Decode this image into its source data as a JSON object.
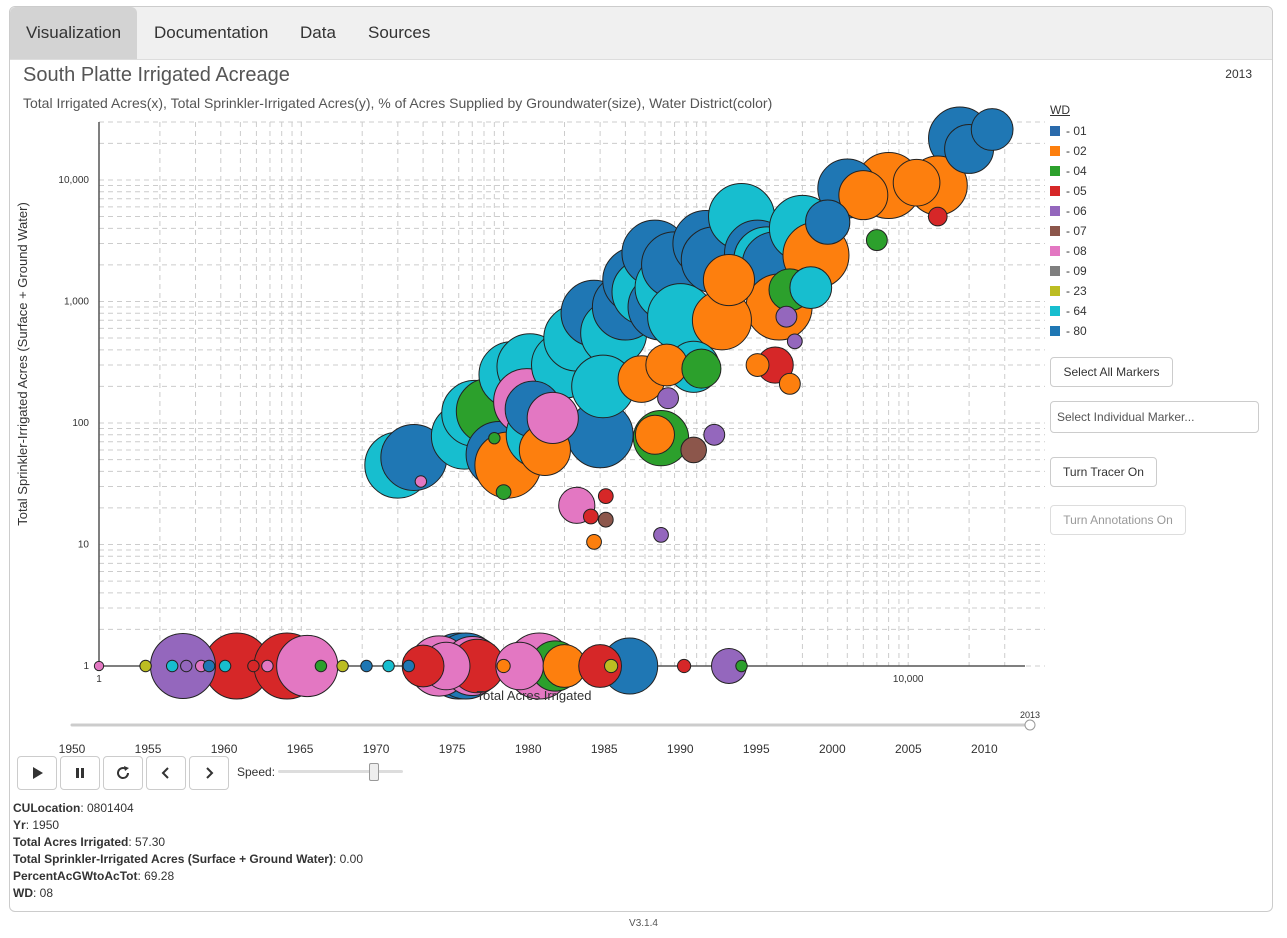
{
  "tabs": [
    "Visualization",
    "Documentation",
    "Data",
    "Sources"
  ],
  "title": "South Platte Irrigated Acreage",
  "subtitle": "Total Irrigated Acres(x), Total Sprinkler-Irrigated Acres(y), % of Acres Supplied by Groundwater(size), Water District(color)",
  "current_year": "2013",
  "legend": {
    "header": "WD",
    "items": [
      {
        "label": "- 01",
        "color": "#2a6aab"
      },
      {
        "label": "- 02",
        "color": "#fd7f0e"
      },
      {
        "label": "- 04",
        "color": "#2ca02c"
      },
      {
        "label": "- 05",
        "color": "#d62728"
      },
      {
        "label": "- 06",
        "color": "#9467bd"
      },
      {
        "label": "- 07",
        "color": "#8c564b"
      },
      {
        "label": "- 08",
        "color": "#e377c2"
      },
      {
        "label": "- 09",
        "color": "#7f7f7f"
      },
      {
        "label": "- 23",
        "color": "#bcbd22"
      },
      {
        "label": "- 64",
        "color": "#17becf"
      },
      {
        "label": "- 80",
        "color": "#1f77b4"
      }
    ]
  },
  "buttons": {
    "select_all": "Select All Markers",
    "select_individual_placeholder": "Select Individual Marker...",
    "tracer": "Turn Tracer On",
    "annotations": "Turn Annotations On"
  },
  "controls": {
    "speed_label": "Speed:",
    "play_icon": "play-icon",
    "pause_icon": "pause-icon",
    "reset_icon": "refresh-icon",
    "prev_icon": "chevron-left-icon",
    "next_icon": "chevron-right-icon"
  },
  "timeline": {
    "ticks": [
      "1950",
      "1955",
      "1960",
      "1965",
      "1970",
      "1975",
      "1980",
      "1985",
      "1990",
      "1995",
      "2000",
      "2005",
      "2010"
    ],
    "handle_label": "2013",
    "range": [
      1950,
      2013
    ],
    "value": 2013
  },
  "info": [
    {
      "key": "CULocation",
      "value": "0801404"
    },
    {
      "key": "Yr",
      "value": "1950"
    },
    {
      "key": "Total Acres Irrigated",
      "value": "57.30"
    },
    {
      "key": "Total Sprinkler-Irrigated Acres (Surface + Ground Water)",
      "value": "0.00"
    },
    {
      "key": "PercentAcGWtoAcTot",
      "value": "69.28"
    },
    {
      "key": "WD",
      "value": "08"
    }
  ],
  "version": "V3.1.4",
  "chart_data": {
    "type": "scatter",
    "xlabel": "Total Acres Irrigated",
    "ylabel": "Total Sprinkler-Irrigated Acres (Surface + Ground Water)",
    "xscale": "log",
    "yscale": "log",
    "xlim": [
      1,
      40000
    ],
    "ylim": [
      1,
      30000
    ],
    "y_ticks": [
      "1",
      "10",
      "100",
      "1,000",
      "10,000"
    ],
    "x_ticks": [
      "1",
      "10,000"
    ],
    "grid": true,
    "legend_position": "right",
    "size_encoding": "% of Acres Supplied by Groundwater",
    "points": [
      {
        "x": 1.0,
        "y": 1,
        "pct": 2,
        "wd": "08"
      },
      {
        "x": 1.7,
        "y": 1,
        "pct": 3,
        "wd": "23"
      },
      {
        "x": 2.3,
        "y": 1,
        "pct": 3,
        "wd": "64"
      },
      {
        "x": 2.6,
        "y": 1,
        "pct": 97,
        "wd": "06"
      },
      {
        "x": 2.7,
        "y": 1,
        "pct": 3,
        "wd": "06"
      },
      {
        "x": 3.2,
        "y": 1,
        "pct": 3,
        "wd": "08"
      },
      {
        "x": 3.5,
        "y": 1,
        "pct": 3,
        "wd": "80"
      },
      {
        "x": 4.2,
        "y": 1,
        "pct": 3,
        "wd": "64"
      },
      {
        "x": 4.8,
        "y": 1,
        "pct": 100,
        "wd": "05"
      },
      {
        "x": 5.8,
        "y": 1,
        "pct": 3,
        "wd": "05"
      },
      {
        "x": 6.8,
        "y": 1,
        "pct": 3,
        "wd": "08"
      },
      {
        "x": 8.5,
        "y": 1,
        "pct": 100,
        "wd": "05"
      },
      {
        "x": 10.7,
        "y": 1,
        "pct": 86,
        "wd": "08"
      },
      {
        "x": 12.5,
        "y": 1,
        "pct": 3,
        "wd": "04"
      },
      {
        "x": 16,
        "y": 1,
        "pct": 3,
        "wd": "23"
      },
      {
        "x": 21,
        "y": 1,
        "pct": 3,
        "wd": "80"
      },
      {
        "x": 27,
        "y": 1,
        "pct": 3,
        "wd": "64"
      },
      {
        "x": 34,
        "y": 1,
        "pct": 3,
        "wd": "80"
      },
      {
        "x": 40,
        "y": 1,
        "pct": 40,
        "wd": "05"
      },
      {
        "x": 48,
        "y": 1,
        "pct": 83,
        "wd": "08"
      },
      {
        "x": 52,
        "y": 1,
        "pct": 52,
        "wd": "08"
      },
      {
        "x": 60,
        "y": 1,
        "pct": 100,
        "wd": "80"
      },
      {
        "x": 65,
        "y": 1,
        "pct": 100,
        "wd": "80"
      },
      {
        "x": 70,
        "y": 1,
        "pct": 80,
        "wd": "08"
      },
      {
        "x": 74,
        "y": 1,
        "pct": 66,
        "wd": "05"
      },
      {
        "x": 100,
        "y": 1,
        "pct": 4,
        "wd": "02"
      },
      {
        "x": 120,
        "y": 1,
        "pct": 52,
        "wd": "08"
      },
      {
        "x": 150,
        "y": 1,
        "pct": 100,
        "wd": "08"
      },
      {
        "x": 180,
        "y": 1,
        "pct": 58,
        "wd": "04"
      },
      {
        "x": 200,
        "y": 1,
        "pct": 42,
        "wd": "02"
      },
      {
        "x": 300,
        "y": 1,
        "pct": 42,
        "wd": "05"
      },
      {
        "x": 340,
        "y": 1,
        "pct": 4,
        "wd": "23"
      },
      {
        "x": 420,
        "y": 1,
        "pct": 72,
        "wd": "80"
      },
      {
        "x": 780,
        "y": 1,
        "pct": 4,
        "wd": "05"
      },
      {
        "x": 1300,
        "y": 1,
        "pct": 28,
        "wd": "06"
      },
      {
        "x": 1500,
        "y": 1,
        "pct": 3,
        "wd": "04"
      },
      {
        "x": 30,
        "y": 45,
        "pct": 100,
        "wd": "64"
      },
      {
        "x": 36,
        "y": 52,
        "pct": 100,
        "wd": "80"
      },
      {
        "x": 39,
        "y": 33,
        "pct": 3,
        "wd": "08"
      },
      {
        "x": 64,
        "y": 78,
        "pct": 100,
        "wd": "64"
      },
      {
        "x": 72,
        "y": 120,
        "pct": 100,
        "wd": "64"
      },
      {
        "x": 85,
        "y": 125,
        "pct": 100,
        "wd": "04"
      },
      {
        "x": 90,
        "y": 75,
        "pct": 3,
        "wd": "04"
      },
      {
        "x": 95,
        "y": 55,
        "pct": 100,
        "wd": "80"
      },
      {
        "x": 105,
        "y": 45,
        "pct": 100,
        "wd": "02"
      },
      {
        "x": 110,
        "y": 250,
        "pct": 100,
        "wd": "64"
      },
      {
        "x": 135,
        "y": 290,
        "pct": 100,
        "wd": "64"
      },
      {
        "x": 130,
        "y": 150,
        "pct": 100,
        "wd": "08"
      },
      {
        "x": 140,
        "y": 130,
        "pct": 72,
        "wd": "80"
      },
      {
        "x": 150,
        "y": 80,
        "pct": 100,
        "wd": "64"
      },
      {
        "x": 160,
        "y": 60,
        "pct": 60,
        "wd": "02"
      },
      {
        "x": 175,
        "y": 110,
        "pct": 60,
        "wd": "08"
      },
      {
        "x": 200,
        "y": 300,
        "pct": 100,
        "wd": "64"
      },
      {
        "x": 230,
        "y": 500,
        "pct": 100,
        "wd": "64"
      },
      {
        "x": 280,
        "y": 800,
        "pct": 100,
        "wd": "80"
      },
      {
        "x": 300,
        "y": 80,
        "pct": 100,
        "wd": "80"
      },
      {
        "x": 310,
        "y": 200,
        "pct": 90,
        "wd": "64"
      },
      {
        "x": 350,
        "y": 550,
        "pct": 100,
        "wd": "64"
      },
      {
        "x": 400,
        "y": 900,
        "pct": 100,
        "wd": "80"
      },
      {
        "x": 450,
        "y": 1500,
        "pct": 100,
        "wd": "80"
      },
      {
        "x": 500,
        "y": 1200,
        "pct": 100,
        "wd": "64"
      },
      {
        "x": 560,
        "y": 2500,
        "pct": 100,
        "wd": "80"
      },
      {
        "x": 600,
        "y": 900,
        "pct": 100,
        "wd": "80"
      },
      {
        "x": 650,
        "y": 1300,
        "pct": 100,
        "wd": "64"
      },
      {
        "x": 700,
        "y": 2000,
        "pct": 100,
        "wd": "80"
      },
      {
        "x": 750,
        "y": 750,
        "pct": 100,
        "wd": "64"
      },
      {
        "x": 480,
        "y": 230,
        "pct": 50,
        "wd": "02"
      },
      {
        "x": 640,
        "y": 300,
        "pct": 40,
        "wd": "02"
      },
      {
        "x": 870,
        "y": 290,
        "pct": 60,
        "wd": "64"
      },
      {
        "x": 950,
        "y": 280,
        "pct": 35,
        "wd": "04"
      },
      {
        "x": 600,
        "y": 75,
        "pct": 70,
        "wd": "04"
      },
      {
        "x": 560,
        "y": 80,
        "pct": 35,
        "wd": "02"
      },
      {
        "x": 1000,
        "y": 3000,
        "pct": 100,
        "wd": "80"
      },
      {
        "x": 1100,
        "y": 2200,
        "pct": 100,
        "wd": "80"
      },
      {
        "x": 1200,
        "y": 700,
        "pct": 80,
        "wd": "02"
      },
      {
        "x": 1300,
        "y": 1500,
        "pct": 60,
        "wd": "02"
      },
      {
        "x": 1500,
        "y": 5000,
        "pct": 100,
        "wd": "64"
      },
      {
        "x": 1800,
        "y": 2500,
        "pct": 100,
        "wd": "80"
      },
      {
        "x": 2000,
        "y": 2200,
        "pct": 100,
        "wd": "64"
      },
      {
        "x": 2200,
        "y": 2000,
        "pct": 100,
        "wd": "80"
      },
      {
        "x": 2300,
        "y": 900,
        "pct": 100,
        "wd": "02"
      },
      {
        "x": 2600,
        "y": 1250,
        "pct": 40,
        "wd": "04"
      },
      {
        "x": 3000,
        "y": 4000,
        "pct": 100,
        "wd": "64"
      },
      {
        "x": 3300,
        "y": 1300,
        "pct": 40,
        "wd": "64"
      },
      {
        "x": 3500,
        "y": 2400,
        "pct": 100,
        "wd": "02"
      },
      {
        "x": 4000,
        "y": 4500,
        "pct": 45,
        "wd": "80"
      },
      {
        "x": 5000,
        "y": 8500,
        "pct": 80,
        "wd": "80"
      },
      {
        "x": 6000,
        "y": 7500,
        "pct": 55,
        "wd": "02"
      },
      {
        "x": 8000,
        "y": 9000,
        "pct": 100,
        "wd": "02"
      },
      {
        "x": 7000,
        "y": 3200,
        "pct": 10,
        "wd": "04"
      },
      {
        "x": 11000,
        "y": 9500,
        "pct": 50,
        "wd": "02"
      },
      {
        "x": 14000,
        "y": 9000,
        "pct": 80,
        "wd": "02"
      },
      {
        "x": 14000,
        "y": 5000,
        "pct": 8,
        "wd": "05"
      },
      {
        "x": 18000,
        "y": 22000,
        "pct": 90,
        "wd": "80"
      },
      {
        "x": 20000,
        "y": 18000,
        "pct": 55,
        "wd": "80"
      },
      {
        "x": 26000,
        "y": 26000,
        "pct": 40,
        "wd": "80"
      },
      {
        "x": 2200,
        "y": 300,
        "pct": 30,
        "wd": "05"
      },
      {
        "x": 1800,
        "y": 300,
        "pct": 12,
        "wd": "02"
      },
      {
        "x": 2600,
        "y": 210,
        "pct": 10,
        "wd": "02"
      },
      {
        "x": 2500,
        "y": 750,
        "pct": 10,
        "wd": "06"
      },
      {
        "x": 2750,
        "y": 470,
        "pct": 5,
        "wd": "06"
      },
      {
        "x": 1100,
        "y": 80,
        "pct": 10,
        "wd": "06"
      },
      {
        "x": 650,
        "y": 160,
        "pct": 10,
        "wd": "06"
      },
      {
        "x": 870,
        "y": 60,
        "pct": 15,
        "wd": "07"
      },
      {
        "x": 600,
        "y": 12,
        "pct": 5,
        "wd": "06"
      },
      {
        "x": 230,
        "y": 21,
        "pct": 30,
        "wd": "08"
      },
      {
        "x": 270,
        "y": 17,
        "pct": 5,
        "wd": "05"
      },
      {
        "x": 320,
        "y": 25,
        "pct": 5,
        "wd": "05"
      },
      {
        "x": 320,
        "y": 16,
        "pct": 5,
        "wd": "07"
      },
      {
        "x": 280,
        "y": 10.5,
        "pct": 5,
        "wd": "02"
      },
      {
        "x": 100,
        "y": 27,
        "pct": 5,
        "wd": "04"
      }
    ]
  }
}
